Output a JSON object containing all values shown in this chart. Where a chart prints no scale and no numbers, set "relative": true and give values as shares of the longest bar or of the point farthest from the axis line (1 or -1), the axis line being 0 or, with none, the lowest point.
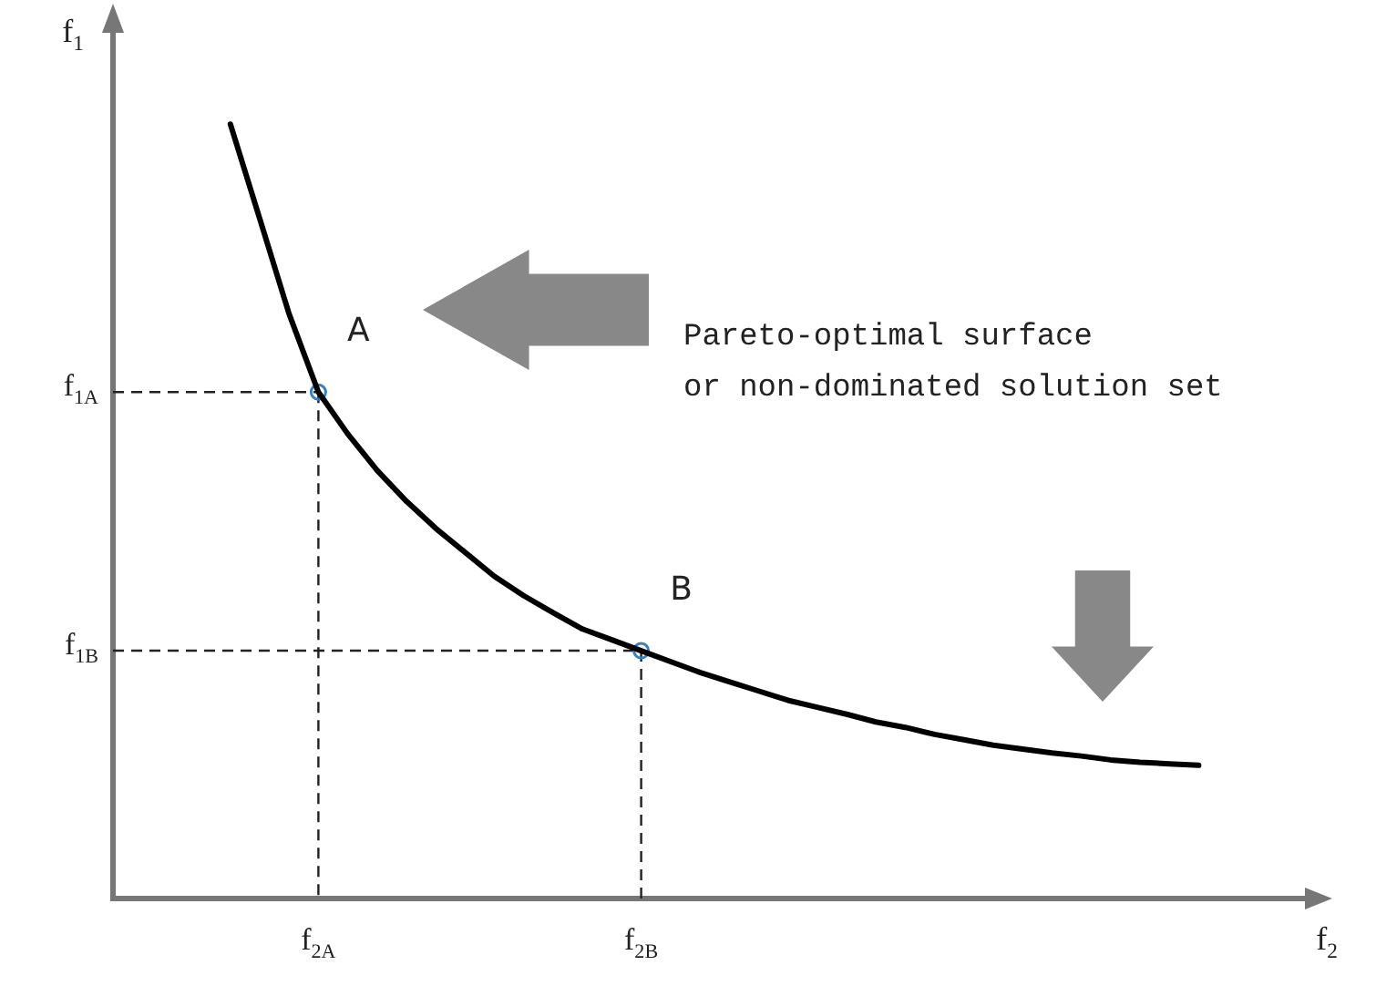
{
  "chart_data": {
    "type": "line",
    "relative": true,
    "xlabel": "f$_{2}$",
    "ylabel": "f$_{1}$",
    "grid": false,
    "legend": false,
    "line_style": "solid",
    "categories": [
      null,
      null,
      null,
      null,
      null,
      null,
      null,
      "f$_{2A}$",
      null,
      null,
      null,
      null,
      null,
      null,
      null,
      null,
      null,
      null,
      "f$_{2B}$",
      null,
      null,
      null,
      null,
      null,
      null,
      null,
      null,
      null,
      null,
      null,
      null,
      null,
      null,
      null,
      null,
      null,
      null,
      null,
      null,
      null,
      null
    ],
    "series": [
      {
        "type": "line",
        "marker": "none",
        "color": "#000000",
        "values": [
          null,
          null,
          null,
          null,
          1,
          0.878,
          0.755,
          0.654,
          0.6,
          0.553,
          0.513,
          0.478,
          0.447,
          0.416,
          0.391,
          0.369,
          0.348,
          0.334,
          0.32,
          0.306,
          0.292,
          0.28,
          0.268,
          0.256,
          0.247,
          0.238,
          0.228,
          0.221,
          0.212,
          0.205,
          0.198,
          0.193,
          0.188,
          0.184,
          0.179,
          0.176,
          0.174,
          0.172,
          null,
          null,
          null
        ]
      },
      {
        "type": "scatter",
        "marker": "circle",
        "color": "#3a7fc0",
        "x": [
          "f$_{2A}$",
          "f$_{2B}$"
        ],
        "values": [
          0.654,
          0.32
        ]
      }
    ],
    "annotations": [
      {
        "text": "A",
        "x": "f$_{2A}$",
        "y": 0.654
      },
      {
        "text": "B",
        "x": "f$_{2B}$",
        "y": 0.32
      },
      "f$_{1A}$",
      "f$_{1B}$",
      "Pareto-optimal surface\nor non-dominated solution set"
    ]
  }
}
